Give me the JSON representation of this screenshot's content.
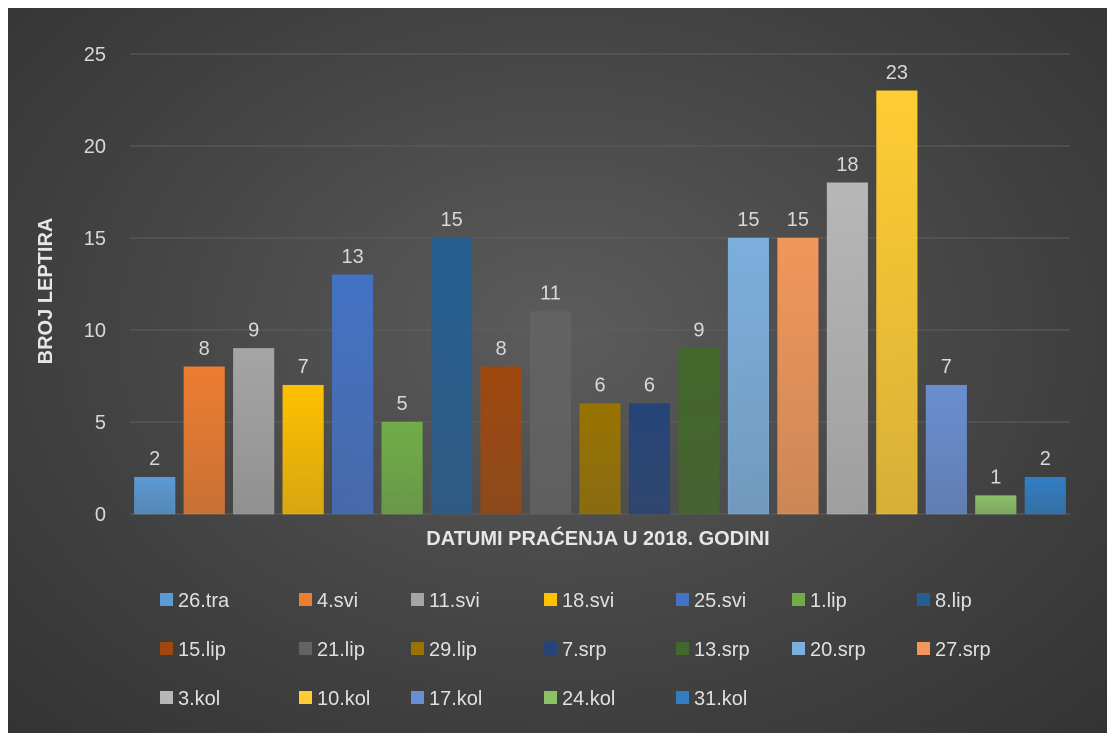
{
  "chart_data": {
    "type": "bar",
    "title": "",
    "xlabel": "DATUMI PRAĆENJA U 2018. GODINI",
    "ylabel": "BROJ LEPTIRA",
    "ylim": [
      0,
      25
    ],
    "yticks": [
      0,
      5,
      10,
      15,
      20,
      25
    ],
    "grid": true,
    "legend_position": "bottom",
    "categories": [
      "26.tra",
      "4.svi",
      "11.svi",
      "18.svi",
      "25.svi",
      "1.lip",
      "8.lip",
      "15.lip",
      "21.lip",
      "29.lip",
      "7.srp",
      "13.srp",
      "20.srp",
      "27.srp",
      "3.kol",
      "10.kol",
      "17.kol",
      "24.kol",
      "31.kol"
    ],
    "values": [
      2,
      8,
      9,
      7,
      13,
      5,
      15,
      8,
      11,
      6,
      6,
      9,
      15,
      15,
      18,
      23,
      7,
      1,
      2
    ],
    "colors": [
      "#5b9bd5",
      "#ed7d31",
      "#a5a5a5",
      "#ffc000",
      "#4472c4",
      "#70ad47",
      "#255e91",
      "#9e480e",
      "#636363",
      "#997300",
      "#264478",
      "#43682b",
      "#7cafdd",
      "#f1975a",
      "#b7b7b7",
      "#ffcd33",
      "#698ed0",
      "#8cc168",
      "#327dc2"
    ]
  }
}
